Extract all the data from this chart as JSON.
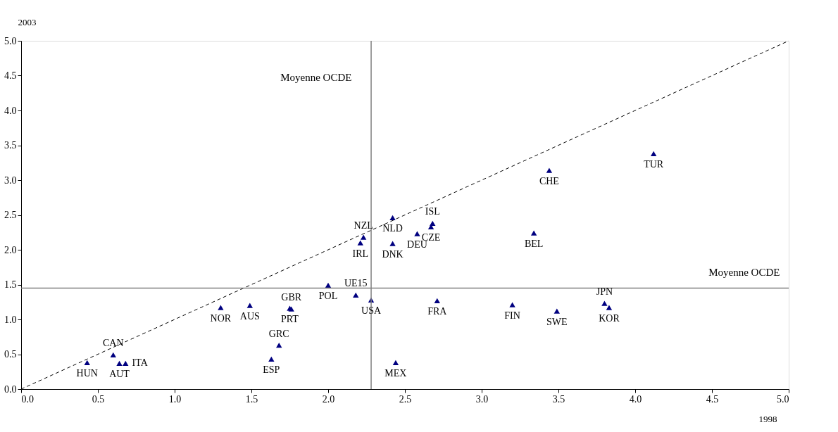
{
  "chart_data": {
    "type": "scatter",
    "xlabel": "1998",
    "ylabel": "2003",
    "xlim": [
      0,
      5
    ],
    "ylim": [
      0,
      5
    ],
    "xticks": [
      {
        "value": 0,
        "label": "0.0"
      },
      {
        "value": 0.5,
        "label": "0.5"
      },
      {
        "value": 1,
        "label": "1.0"
      },
      {
        "value": 1.5,
        "label": "1.5"
      },
      {
        "value": 2,
        "label": "2.0"
      },
      {
        "value": 2.5,
        "label": "2.5"
      },
      {
        "value": 3,
        "label": "3.0"
      },
      {
        "value": 3.5,
        "label": "3.5"
      },
      {
        "value": 4,
        "label": "4.0"
      },
      {
        "value": 4.5,
        "label": "4.5"
      },
      {
        "value": 5,
        "label": "5.0"
      }
    ],
    "yticks": [
      {
        "value": 0,
        "label": "0.0"
      },
      {
        "value": 0.5,
        "label": "0.5"
      },
      {
        "value": 1,
        "label": "1.0"
      },
      {
        "value": 1.5,
        "label": "1.5"
      },
      {
        "value": 2,
        "label": "2.0"
      },
      {
        "value": 2.5,
        "label": "2.5"
      },
      {
        "value": 3,
        "label": "3.0"
      },
      {
        "value": 3.5,
        "label": "3.5"
      },
      {
        "value": 4,
        "label": "4.0"
      },
      {
        "value": 4.5,
        "label": "4.5"
      },
      {
        "value": 5,
        "label": "5.0"
      }
    ],
    "grid": false,
    "marker": "triangle",
    "series": [
      {
        "color": "#000080",
        "x": [
          0.43,
          0.6,
          0.64,
          0.68,
          1.3,
          1.49,
          1.75,
          1.76,
          1.68,
          1.63,
          2.0,
          2.18,
          2.28,
          2.23,
          2.21,
          2.42,
          2.42,
          2.58,
          2.68,
          2.67,
          2.71,
          2.44,
          3.2,
          3.49,
          3.8,
          3.83,
          3.34,
          3.44,
          4.12
        ],
        "values": [
          0.38,
          0.49,
          0.37,
          0.37,
          1.17,
          1.2,
          1.16,
          1.15,
          0.63,
          0.43,
          1.49,
          1.35,
          1.28,
          2.18,
          2.1,
          2.46,
          2.09,
          2.23,
          2.38,
          2.33,
          1.27,
          0.38,
          1.21,
          1.12,
          1.23,
          1.17,
          2.24,
          3.14,
          3.38
        ]
      },
      {
        "type": "line",
        "color": "#000000",
        "line_style": "dashed",
        "marker": "none",
        "x": [
          0,
          5
        ],
        "values": [
          0,
          5
        ]
      }
    ],
    "annotations": [
      {
        "text": "HUN",
        "x": 0.43,
        "y": 0.38
      },
      {
        "text": "CAN",
        "x": 0.6,
        "y": 0.49
      },
      {
        "text": "AUT",
        "x": 0.64,
        "y": 0.37
      },
      {
        "text": "ITA",
        "x": 0.68,
        "y": 0.37
      },
      {
        "text": "NOR",
        "x": 1.3,
        "y": 1.17
      },
      {
        "text": "AUS",
        "x": 1.49,
        "y": 1.2
      },
      {
        "text": "PRT",
        "x": 1.75,
        "y": 1.16
      },
      {
        "text": "GBR",
        "x": 1.76,
        "y": 1.15
      },
      {
        "text": "GRC",
        "x": 1.68,
        "y": 0.63
      },
      {
        "text": "ESP",
        "x": 1.63,
        "y": 0.43
      },
      {
        "text": "POL",
        "x": 2.0,
        "y": 1.49
      },
      {
        "text": "UE15",
        "x": 2.18,
        "y": 1.35
      },
      {
        "text": "USA",
        "x": 2.28,
        "y": 1.28
      },
      {
        "text": "NZL",
        "x": 2.23,
        "y": 2.18
      },
      {
        "text": "IRL",
        "x": 2.21,
        "y": 2.1
      },
      {
        "text": "NLD",
        "x": 2.42,
        "y": 2.46
      },
      {
        "text": "DNK",
        "x": 2.42,
        "y": 2.09
      },
      {
        "text": "DEU",
        "x": 2.58,
        "y": 2.23
      },
      {
        "text": "ISL",
        "x": 2.68,
        "y": 2.38
      },
      {
        "text": "CZE",
        "x": 2.67,
        "y": 2.33
      },
      {
        "text": "FRA",
        "x": 2.71,
        "y": 1.27
      },
      {
        "text": "MEX",
        "x": 2.44,
        "y": 0.38
      },
      {
        "text": "FIN",
        "x": 3.2,
        "y": 1.21
      },
      {
        "text": "SWE",
        "x": 3.49,
        "y": 1.12
      },
      {
        "text": "JPN",
        "x": 3.8,
        "y": 1.23
      },
      {
        "text": "KOR",
        "x": 3.83,
        "y": 1.17
      },
      {
        "text": "BEL",
        "x": 3.34,
        "y": 2.24
      },
      {
        "text": "CHE",
        "x": 3.44,
        "y": 3.14
      },
      {
        "text": "TUR",
        "x": 4.12,
        "y": 3.38
      }
    ],
    "ref_lines": [
      {
        "axis": "x",
        "value": 2.28,
        "label": "Moyenne OCDE",
        "color": "#808080"
      },
      {
        "axis": "y",
        "value": 1.45,
        "label": "Moyenne OCDE",
        "color": "#808080"
      }
    ]
  }
}
